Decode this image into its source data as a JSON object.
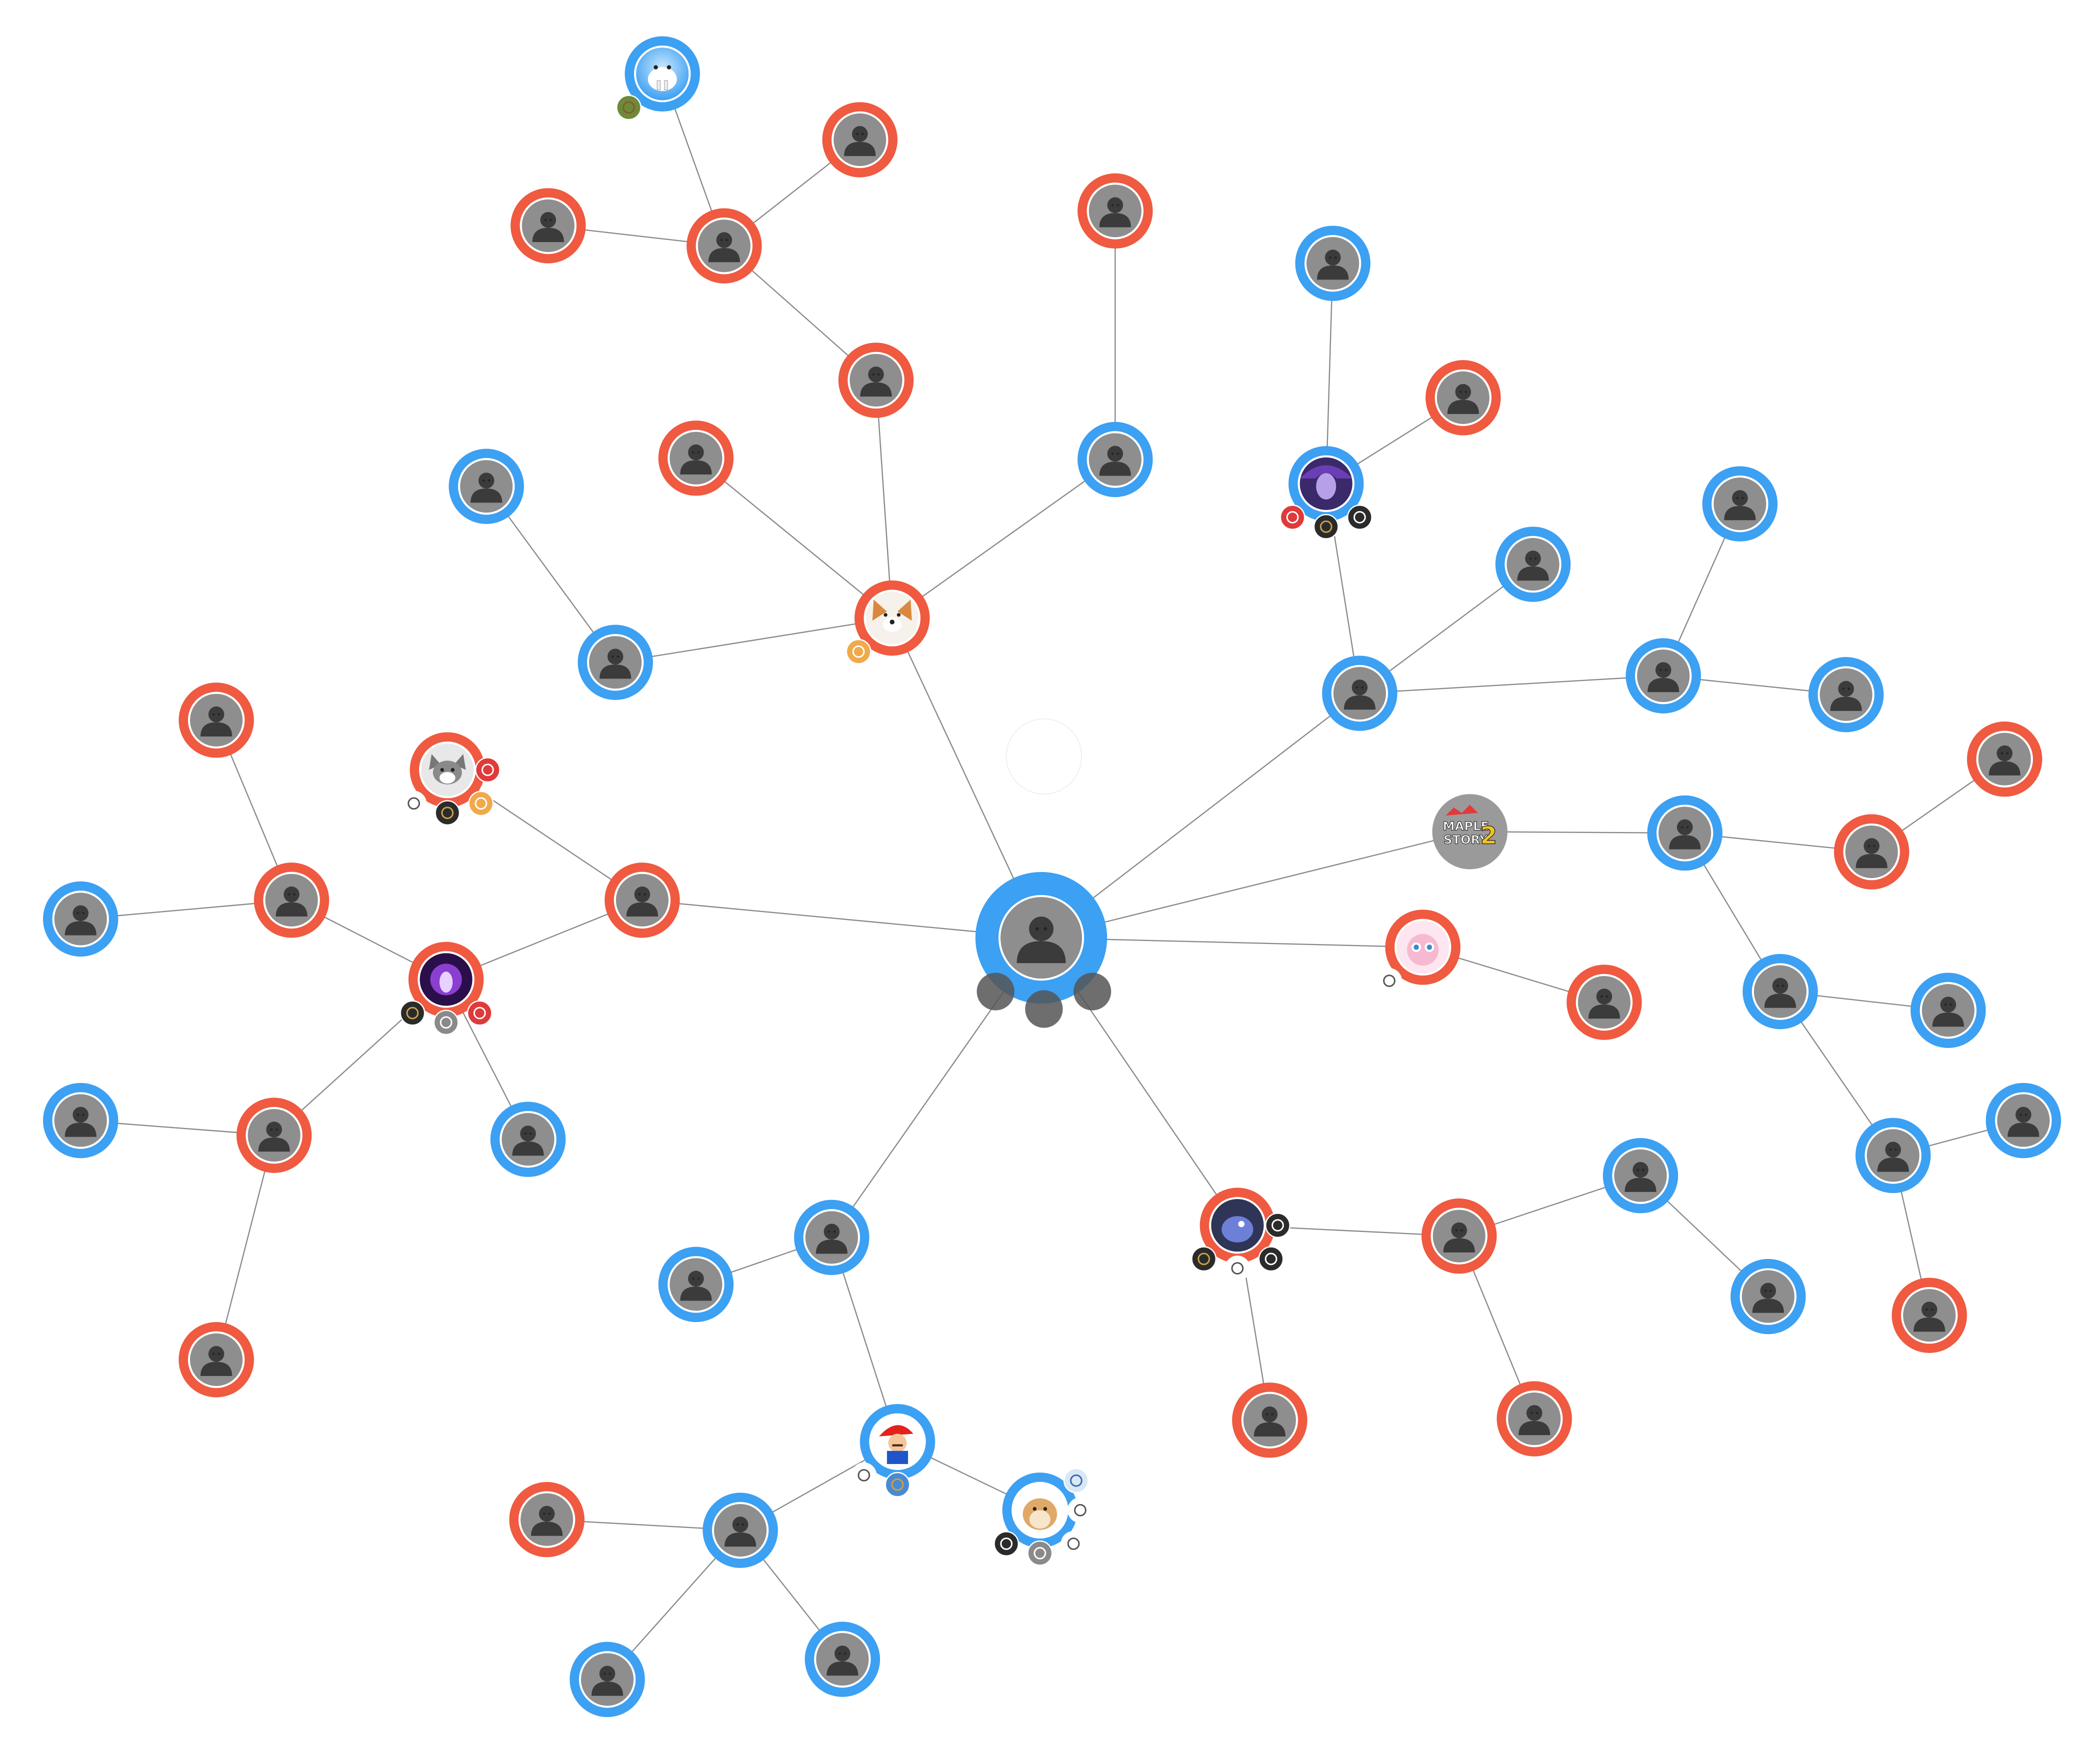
{
  "colors": {
    "blue": "#3ca0f3",
    "red": "#ef5a40",
    "gray": "#9a9a9a",
    "avatar_bg": "#8e8e8e",
    "silhouette": "#3b3b3b",
    "edge": "#8a8a8a",
    "center_dot": "#555555"
  },
  "logo_text": {
    "line1": "MAPLE",
    "line2": "STORY",
    "digit": "2"
  },
  "nodes": [
    {
      "id": "center",
      "color": "blue",
      "avatar": "default",
      "kind": "self"
    },
    {
      "id": "corgi",
      "color": "red",
      "avatar": "corgi",
      "badges": [
        "paw"
      ]
    },
    {
      "id": "n_red_top1",
      "color": "red",
      "avatar": "default"
    },
    {
      "id": "n_red_top2",
      "color": "red",
      "avatar": "default"
    },
    {
      "id": "n_red_top3",
      "color": "red",
      "avatar": "default"
    },
    {
      "id": "n_red_top4",
      "color": "red",
      "avatar": "default"
    },
    {
      "id": "n_blue_walrus",
      "color": "blue",
      "avatar": "walrus",
      "badges": [
        "block"
      ]
    },
    {
      "id": "n_red_mid1",
      "color": "red",
      "avatar": "default"
    },
    {
      "id": "n_blue_left1",
      "color": "blue",
      "avatar": "default"
    },
    {
      "id": "n_blue_left2",
      "color": "blue",
      "avatar": "default"
    },
    {
      "id": "n_blue_mid",
      "color": "blue",
      "avatar": "default"
    },
    {
      "id": "n_red_mid2",
      "color": "red",
      "avatar": "default"
    },
    {
      "id": "n_blue_hub_r",
      "color": "blue",
      "avatar": "default"
    },
    {
      "id": "n_blue_lady",
      "color": "blue",
      "avatar": "lady",
      "badges": [
        "n",
        "l",
        "p"
      ]
    },
    {
      "id": "n_blue_top_r",
      "color": "blue",
      "avatar": "default"
    },
    {
      "id": "n_red_r1",
      "color": "red",
      "avatar": "default"
    },
    {
      "id": "n_blue_r1",
      "color": "blue",
      "avatar": "default"
    },
    {
      "id": "n_blue_r2",
      "color": "blue",
      "avatar": "default"
    },
    {
      "id": "n_blue_r3",
      "color": "blue",
      "avatar": "default"
    },
    {
      "id": "n_blue_r4",
      "color": "blue",
      "avatar": "default"
    },
    {
      "id": "maple",
      "color": "gray",
      "avatar": "maple"
    },
    {
      "id": "n_blue_r5",
      "color": "blue",
      "avatar": "default"
    },
    {
      "id": "n_red_r2",
      "color": "red",
      "avatar": "default"
    },
    {
      "id": "n_red_r3",
      "color": "red",
      "avatar": "default"
    },
    {
      "id": "n_blue_r6",
      "color": "blue",
      "avatar": "default"
    },
    {
      "id": "n_blue_r7",
      "color": "blue",
      "avatar": "default"
    },
    {
      "id": "n_blue_r8",
      "color": "blue",
      "avatar": "default"
    },
    {
      "id": "n_blue_r9",
      "color": "blue",
      "avatar": "default"
    },
    {
      "id": "n_red_r4",
      "color": "red",
      "avatar": "default"
    },
    {
      "id": "jiggly",
      "color": "red",
      "avatar": "pink",
      "badges": [
        "o"
      ]
    },
    {
      "id": "n_red_r5",
      "color": "red",
      "avatar": "default"
    },
    {
      "id": "bird",
      "color": "red",
      "avatar": "bird",
      "badges": [
        "l",
        "ow",
        "p",
        "a"
      ]
    },
    {
      "id": "n_red_r6",
      "color": "red",
      "avatar": "default"
    },
    {
      "id": "n_blue_r10",
      "color": "blue",
      "avatar": "default"
    },
    {
      "id": "n_blue_r11",
      "color": "blue",
      "avatar": "default"
    },
    {
      "id": "n_red_r7",
      "color": "red",
      "avatar": "default"
    },
    {
      "id": "n_red_r8",
      "color": "red",
      "avatar": "default"
    },
    {
      "id": "n_blue_b1",
      "color": "blue",
      "avatar": "default"
    },
    {
      "id": "n_blue_b2",
      "color": "blue",
      "avatar": "default"
    },
    {
      "id": "mario",
      "color": "blue",
      "avatar": "mario",
      "badges": [
        "ow",
        "road"
      ]
    },
    {
      "id": "hamster",
      "color": "blue",
      "avatar": "hamster",
      "badges": [
        "p",
        "d",
        "ow",
        "o",
        "x"
      ]
    },
    {
      "id": "n_blue_b3",
      "color": "blue",
      "avatar": "default"
    },
    {
      "id": "n_red_b1",
      "color": "red",
      "avatar": "default"
    },
    {
      "id": "n_blue_b4",
      "color": "blue",
      "avatar": "default"
    },
    {
      "id": "n_blue_b5",
      "color": "blue",
      "avatar": "default"
    },
    {
      "id": "n_red_l1",
      "color": "red",
      "avatar": "default"
    },
    {
      "id": "purple",
      "color": "red",
      "avatar": "purple",
      "badges": [
        "l",
        "d",
        "n"
      ]
    },
    {
      "id": "cat",
      "color": "red",
      "avatar": "cat",
      "badges": [
        "ow",
        "l",
        "paw",
        "n"
      ]
    },
    {
      "id": "n_red_l2",
      "color": "red",
      "avatar": "default"
    },
    {
      "id": "n_red_l3",
      "color": "red",
      "avatar": "default"
    },
    {
      "id": "n_blue_l1",
      "color": "blue",
      "avatar": "default"
    },
    {
      "id": "n_blue_l2",
      "color": "blue",
      "avatar": "default"
    },
    {
      "id": "n_blue_l3",
      "color": "blue",
      "avatar": "default"
    },
    {
      "id": "n_red_l4",
      "color": "red",
      "avatar": "default"
    },
    {
      "id": "n_red_l5",
      "color": "red",
      "avatar": "default"
    }
  ],
  "edges": [
    [
      "center",
      "corgi"
    ],
    [
      "center",
      "n_red_mid2"
    ],
    [
      "center",
      "n_blue_hub_r"
    ],
    [
      "center",
      "maple"
    ],
    [
      "center",
      "jiggly"
    ],
    [
      "center",
      "bird"
    ],
    [
      "center",
      "n_blue_b1"
    ],
    [
      "corgi",
      "n_red_mid1"
    ],
    [
      "corgi",
      "n_red_top4"
    ],
    [
      "corgi",
      "n_blue_mid"
    ],
    [
      "corgi",
      "n_blue_left2"
    ],
    [
      "n_red_top4",
      "n_red_top3"
    ],
    [
      "n_red_top3",
      "n_red_top1"
    ],
    [
      "n_red_top3",
      "n_red_top2"
    ],
    [
      "n_red_top3",
      "n_blue_walrus"
    ],
    [
      "n_blue_mid",
      "n_red_r1_top"
    ],
    [
      "n_blue_left2",
      "n_blue_left1"
    ],
    [
      "n_blue_hub_r",
      "n_blue_lady"
    ],
    [
      "n_blue_hub_r",
      "n_blue_r1"
    ],
    [
      "n_blue_hub_r",
      "n_blue_r2"
    ],
    [
      "n_blue_lady",
      "n_blue_top_r"
    ],
    [
      "n_blue_lady",
      "n_red_r1"
    ],
    [
      "n_blue_r2",
      "n_blue_r3"
    ],
    [
      "n_blue_r2",
      "n_blue_r4"
    ],
    [
      "maple",
      "n_blue_r5"
    ],
    [
      "n_blue_r5",
      "n_red_r3"
    ],
    [
      "n_red_r3",
      "n_red_r2"
    ],
    [
      "n_blue_r5",
      "n_blue_r6"
    ],
    [
      "n_blue_r6",
      "n_blue_r7"
    ],
    [
      "n_blue_r6",
      "n_blue_r8"
    ],
    [
      "n_blue_r8",
      "n_blue_r9"
    ],
    [
      "n_blue_r8",
      "n_red_r4"
    ],
    [
      "jiggly",
      "n_red_r5"
    ],
    [
      "bird",
      "n_red_r6"
    ],
    [
      "bird",
      "n_red_r7"
    ],
    [
      "n_red_r6",
      "n_blue_r10"
    ],
    [
      "n_red_r6",
      "n_red_r8"
    ],
    [
      "n_blue_r10",
      "n_blue_r11"
    ],
    [
      "n_blue_b1",
      "n_blue_b2"
    ],
    [
      "n_blue_b1",
      "mario"
    ],
    [
      "mario",
      "hamster"
    ],
    [
      "mario",
      "n_blue_b3"
    ],
    [
      "n_blue_b3",
      "n_red_b1"
    ],
    [
      "n_blue_b3",
      "n_blue_b4"
    ],
    [
      "n_blue_b3",
      "n_blue_b5"
    ],
    [
      "n_red_mid2",
      "purple"
    ],
    [
      "n_red_mid2",
      "cat"
    ],
    [
      "purple",
      "n_red_l2"
    ],
    [
      "purple",
      "n_red_l3"
    ],
    [
      "purple",
      "n_blue_l3"
    ],
    [
      "n_red_l2",
      "n_blue_l1"
    ],
    [
      "n_red_l2",
      "n_red_l1"
    ],
    [
      "n_red_l3",
      "n_blue_l2"
    ],
    [
      "n_red_l3",
      "n_red_l5"
    ]
  ]
}
